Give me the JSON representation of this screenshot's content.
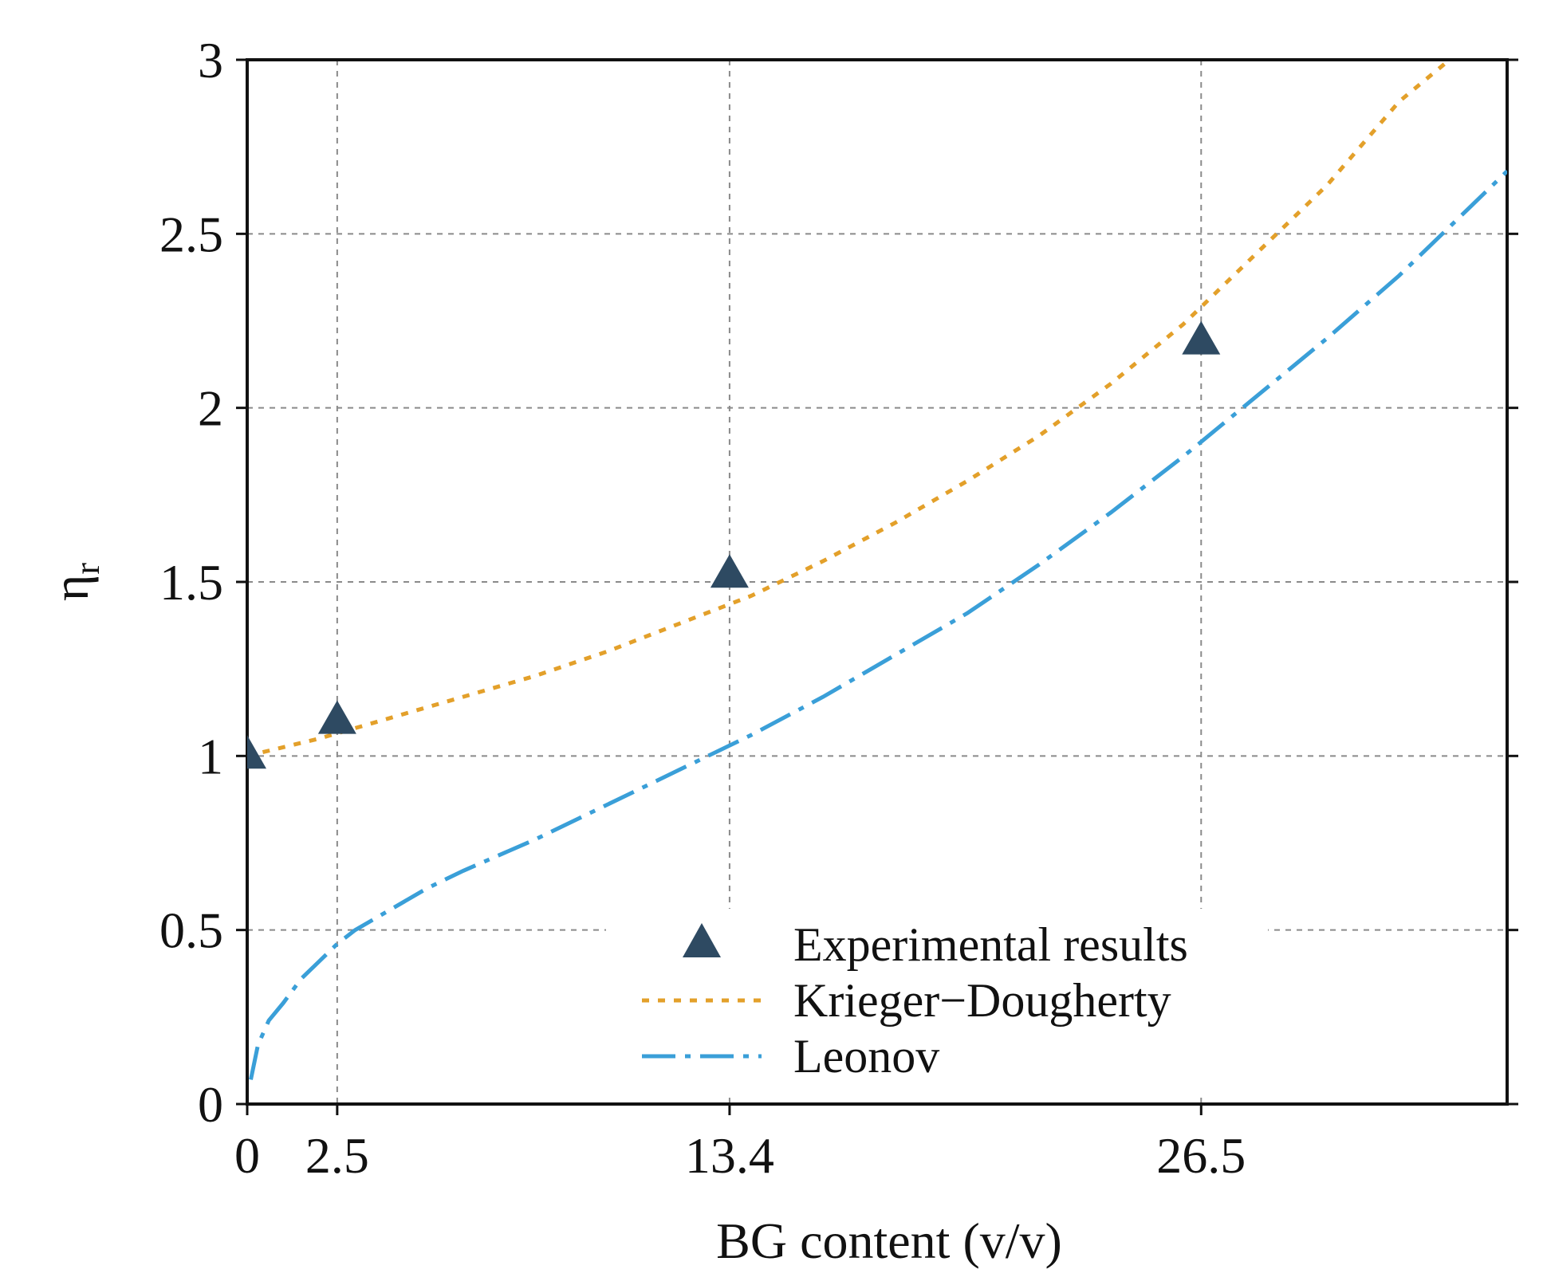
{
  "chart_data": {
    "type": "line",
    "xlabel": "BG content (v/v)",
    "ylabel": "η",
    "ylabel_subscript": "r",
    "xlim": [
      0,
      35
    ],
    "ylim": [
      0,
      3
    ],
    "x_ticks": [
      0,
      2.5,
      13.4,
      26.5
    ],
    "x_tick_labels": [
      "0",
      "2.5",
      "13.4",
      "26.5"
    ],
    "y_ticks": [
      0,
      0.5,
      1,
      1.5,
      2,
      2.5,
      3
    ],
    "y_tick_labels": [
      "0",
      "0.5",
      "1",
      "1.5",
      "2",
      "2.5",
      "3"
    ],
    "grid": true,
    "legend_position": "lower-right",
    "series": [
      {
        "name": "Experimental results",
        "kind": "scatter",
        "marker": "triangle",
        "color": "#2e4a62",
        "x": [
          0,
          2.5,
          13.4,
          26.5
        ],
        "y": [
          1.0,
          1.1,
          1.52,
          2.19
        ]
      },
      {
        "name": "Krieger−Dougherty",
        "kind": "line",
        "style": "dotted",
        "color": "#e3a02a",
        "x": [
          0,
          2,
          4,
          6,
          8,
          10,
          12,
          14,
          16,
          18,
          20,
          22,
          24,
          26,
          28,
          30,
          32,
          33.4
        ],
        "y": [
          1.0,
          1.05,
          1.11,
          1.17,
          1.23,
          1.3,
          1.38,
          1.46,
          1.56,
          1.67,
          1.79,
          1.92,
          2.07,
          2.24,
          2.44,
          2.64,
          2.88,
          3.0
        ]
      },
      {
        "name": "Leonov",
        "kind": "line",
        "style": "dash-dot",
        "color": "#3a9fd8",
        "x": [
          0.1,
          0.3,
          0.6,
          1,
          1.5,
          2,
          2.5,
          3,
          4,
          5,
          6,
          8,
          10,
          12,
          14,
          16,
          18,
          20,
          22,
          24,
          26,
          28,
          30,
          32,
          34,
          35
        ],
        "y": [
          0.07,
          0.17,
          0.24,
          0.29,
          0.36,
          0.41,
          0.46,
          0.5,
          0.56,
          0.62,
          0.67,
          0.76,
          0.86,
          0.96,
          1.06,
          1.17,
          1.29,
          1.41,
          1.55,
          1.7,
          1.86,
          2.03,
          2.2,
          2.38,
          2.58,
          2.68
        ]
      }
    ]
  }
}
